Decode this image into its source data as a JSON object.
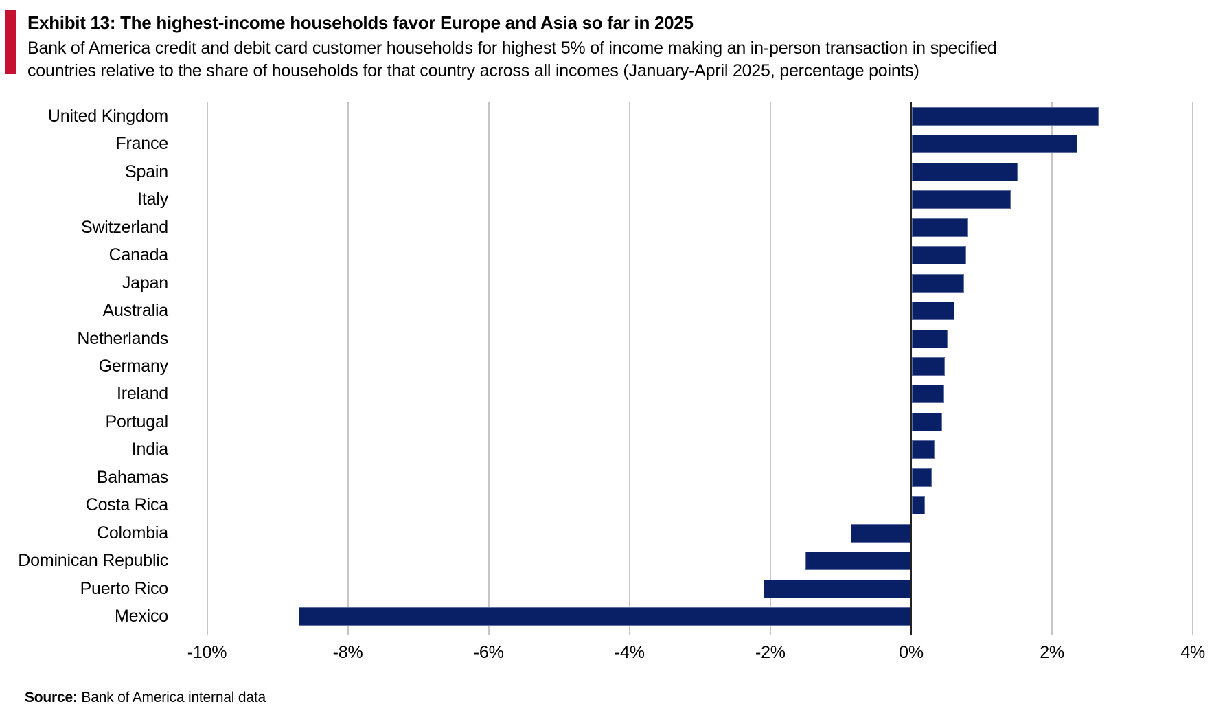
{
  "header": {
    "title": "Exhibit 13: The highest-income households favor Europe and Asia so far in 2025",
    "subtitle": "Bank of America credit and debit card customer households for highest 5% of income making an in-person transaction in specified countries relative to the share of households for that country across all incomes (January-April 2025, percentage points)"
  },
  "chart_data": {
    "type": "bar",
    "orientation": "horizontal",
    "title": "Exhibit 13: The highest-income households favor Europe and Asia so far in 2025",
    "unit": "percentage points",
    "categories": [
      "United Kingdom",
      "France",
      "Spain",
      "Italy",
      "Switzerland",
      "Canada",
      "Japan",
      "Australia",
      "Netherlands",
      "Germany",
      "Ireland",
      "Portugal",
      "India",
      "Bahamas",
      "Costa Rica",
      "Colombia",
      "Dominican Republic",
      "Puerto Rico",
      "Mexico"
    ],
    "values": [
      2.65,
      2.35,
      1.5,
      1.4,
      0.8,
      0.77,
      0.74,
      0.6,
      0.51,
      0.47,
      0.46,
      0.43,
      0.32,
      0.28,
      0.19,
      -0.86,
      -1.5,
      -2.1,
      -8.7
    ],
    "xlim": [
      -10,
      4
    ],
    "x_ticks": [
      {
        "label": "-10%",
        "value": -10
      },
      {
        "label": "-8%",
        "value": -8
      },
      {
        "label": "-6%",
        "value": -6
      },
      {
        "label": "-4%",
        "value": -4
      },
      {
        "label": "-2%",
        "value": -2
      },
      {
        "label": "0%",
        "value": 0
      },
      {
        "label": "2%",
        "value": 2
      },
      {
        "label": "4%",
        "value": 4
      }
    ],
    "grid": "vertical",
    "legend": "none",
    "bar_color": "#0a2066",
    "gridline_color": "#c6c6c6",
    "zero_axis_color": "#222222"
  },
  "footer": {
    "source_label": "Source:",
    "source_text": " Bank of America internal data"
  },
  "accent_color": "#c41230"
}
